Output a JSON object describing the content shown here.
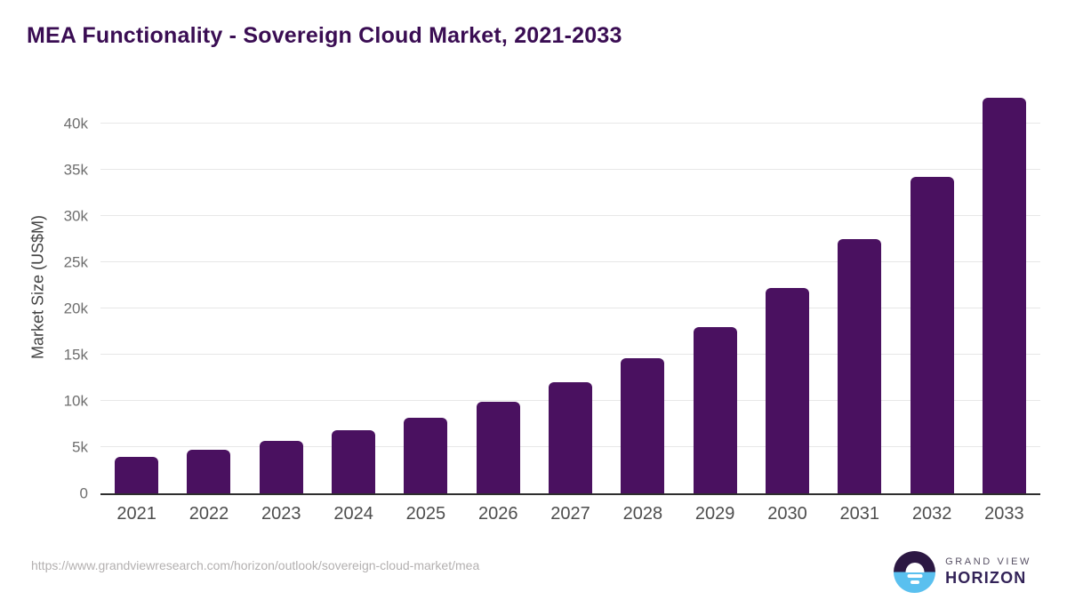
{
  "title": "MEA Functionality - Sovereign Cloud Market, 2021-2033",
  "chart_data": {
    "type": "bar",
    "title": "MEA Functionality - Sovereign Cloud Market, 2021-2033",
    "categories": [
      "2021",
      "2022",
      "2023",
      "2024",
      "2025",
      "2026",
      "2027",
      "2028",
      "2029",
      "2030",
      "2031",
      "2032",
      "2033"
    ],
    "values": [
      3950,
      4750,
      5700,
      6870,
      8200,
      9950,
      12050,
      14600,
      18000,
      22200,
      27500,
      34200,
      42800
    ],
    "xlabel": "",
    "ylabel": "Market Size (US$M)",
    "ylim": [
      0,
      45000
    ],
    "yticks": [
      0,
      5000,
      10000,
      15000,
      20000,
      25000,
      30000,
      35000,
      40000
    ],
    "ytick_labels": [
      "0",
      "5k",
      "10k",
      "15k",
      "20k",
      "25k",
      "30k",
      "35k",
      "40k"
    ],
    "grid": true,
    "legend": false,
    "bar_color": "#4a1160"
  },
  "colors": {
    "title": "#3a0d53",
    "bar": "#4a1160",
    "axis_line": "#2e2e2e",
    "gridline": "#e7e7e7",
    "ytick_text": "#6f6f6f",
    "xtick_text": "#4d4d4d",
    "url_text": "#b3b0b0",
    "logo_circle_top": "#2c1843",
    "logo_circle_bottom": "#5ac0ef",
    "logo_horizon_text": "#332358"
  },
  "footer": {
    "source_url": "https://www.grandviewresearch.com/horizon/outlook/sovereign-cloud-market/mea",
    "logo": {
      "line1": "GRAND VIEW",
      "line2": "HORIZON"
    }
  }
}
